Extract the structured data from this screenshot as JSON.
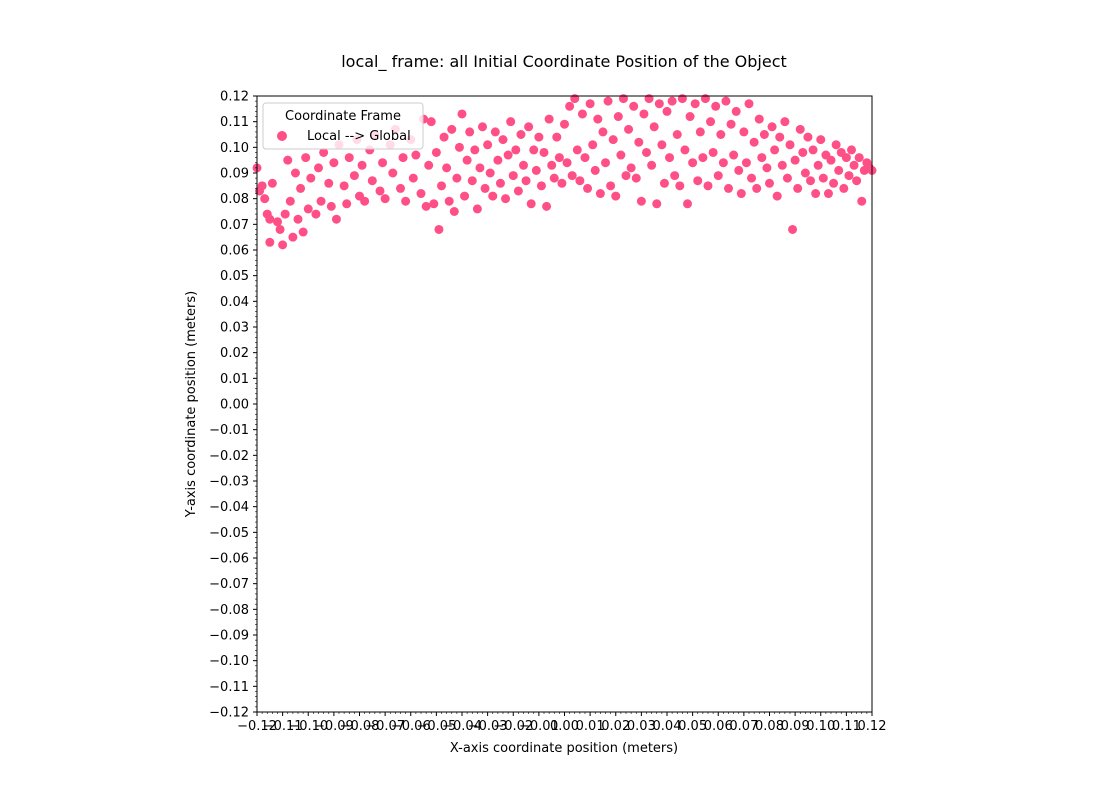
{
  "colors": {
    "marker": "#ff4f87",
    "axis": "#000000",
    "background": "#ffffff",
    "legend_border": "#cccccc"
  },
  "chart_data": {
    "type": "scatter",
    "title": "local_ frame: all Initial Coordinate Position of the Object",
    "xlabel": "X-axis coordinate position (meters)",
    "ylabel": "Y-axis coordinate position (meters)",
    "xlim": [
      -0.12,
      0.12
    ],
    "ylim": [
      -0.12,
      0.12
    ],
    "grid": false,
    "x_ticks": [
      "−0.12",
      "−0.11",
      "−0.10",
      "−0.09",
      "−0.08",
      "−0.07",
      "−0.06",
      "−0.05",
      "−0.04",
      "−0.03",
      "−0.02",
      "−0.01",
      "0.00",
      "0.01",
      "0.02",
      "0.03",
      "0.04",
      "0.05",
      "0.06",
      "0.07",
      "0.08",
      "0.09",
      "0.10",
      "0.11",
      "0.12"
    ],
    "y_ticks": [
      "0.12",
      "0.11",
      "0.10",
      "0.09",
      "0.08",
      "0.07",
      "0.06",
      "0.05",
      "0.04",
      "0.03",
      "0.02",
      "0.01",
      "0.00",
      "−0.01",
      "−0.02",
      "−0.03",
      "−0.04",
      "−0.05",
      "−0.06",
      "−0.07",
      "−0.08",
      "−0.09",
      "−0.10",
      "−0.11",
      "−0.12"
    ],
    "legend": {
      "title": "Coordinate Frame",
      "placement": "top-left",
      "entries": [
        "Local --> Global"
      ]
    },
    "series": [
      {
        "name": "Local --> Global",
        "color": "#ff4f87",
        "points": [
          [
            -0.12,
            0.092
          ],
          [
            -0.119,
            0.083
          ],
          [
            -0.118,
            0.085
          ],
          [
            -0.117,
            0.08
          ],
          [
            -0.116,
            0.074
          ],
          [
            -0.115,
            0.063
          ],
          [
            -0.115,
            0.072
          ],
          [
            -0.114,
            0.086
          ],
          [
            -0.112,
            0.071
          ],
          [
            -0.111,
            0.068
          ],
          [
            -0.11,
            0.062
          ],
          [
            -0.109,
            0.074
          ],
          [
            -0.108,
            0.095
          ],
          [
            -0.107,
            0.079
          ],
          [
            -0.106,
            0.065
          ],
          [
            -0.105,
            0.09
          ],
          [
            -0.104,
            0.072
          ],
          [
            -0.103,
            0.084
          ],
          [
            -0.102,
            0.067
          ],
          [
            -0.101,
            0.096
          ],
          [
            -0.1,
            0.076
          ],
          [
            -0.099,
            0.088
          ],
          [
            -0.097,
            0.074
          ],
          [
            -0.096,
            0.092
          ],
          [
            -0.095,
            0.079
          ],
          [
            -0.094,
            0.098
          ],
          [
            -0.092,
            0.086
          ],
          [
            -0.091,
            0.077
          ],
          [
            -0.09,
            0.094
          ],
          [
            -0.089,
            0.072
          ],
          [
            -0.088,
            0.101
          ],
          [
            -0.086,
            0.085
          ],
          [
            -0.085,
            0.078
          ],
          [
            -0.084,
            0.096
          ],
          [
            -0.082,
            0.089
          ],
          [
            -0.081,
            0.103
          ],
          [
            -0.08,
            0.081
          ],
          [
            -0.079,
            0.093
          ],
          [
            -0.078,
            0.079
          ],
          [
            -0.076,
            0.099
          ],
          [
            -0.075,
            0.087
          ],
          [
            -0.074,
            0.105
          ],
          [
            -0.072,
            0.083
          ],
          [
            -0.071,
            0.094
          ],
          [
            -0.07,
            0.08
          ],
          [
            -0.068,
            0.101
          ],
          [
            -0.067,
            0.09
          ],
          [
            -0.066,
            0.107
          ],
          [
            -0.064,
            0.084
          ],
          [
            -0.063,
            0.096
          ],
          [
            -0.062,
            0.079
          ],
          [
            -0.06,
            0.103
          ],
          [
            -0.059,
            0.088
          ],
          [
            -0.058,
            0.097
          ],
          [
            -0.056,
            0.082
          ],
          [
            -0.055,
            0.111
          ],
          [
            -0.054,
            0.077
          ],
          [
            -0.053,
            0.093
          ],
          [
            -0.052,
            0.11
          ],
          [
            -0.051,
            0.078
          ],
          [
            -0.05,
            0.098
          ],
          [
            -0.049,
            0.068
          ],
          [
            -0.048,
            0.085
          ],
          [
            -0.047,
            0.104
          ],
          [
            -0.046,
            0.092
          ],
          [
            -0.045,
            0.079
          ],
          [
            -0.044,
            0.107
          ],
          [
            -0.043,
            0.075
          ],
          [
            -0.042,
            0.088
          ],
          [
            -0.041,
            0.1
          ],
          [
            -0.04,
            0.113
          ],
          [
            -0.039,
            0.081
          ],
          [
            -0.038,
            0.095
          ],
          [
            -0.037,
            0.106
          ],
          [
            -0.036,
            0.087
          ],
          [
            -0.035,
            0.099
          ],
          [
            -0.034,
            0.076
          ],
          [
            -0.033,
            0.092
          ],
          [
            -0.032,
            0.108
          ],
          [
            -0.031,
            0.084
          ],
          [
            -0.03,
            0.101
          ],
          [
            -0.029,
            0.09
          ],
          [
            -0.028,
            0.081
          ],
          [
            -0.027,
            0.106
          ],
          [
            -0.026,
            0.095
          ],
          [
            -0.025,
            0.086
          ],
          [
            -0.024,
            0.103
          ],
          [
            -0.023,
            0.08
          ],
          [
            -0.022,
            0.097
          ],
          [
            -0.021,
            0.11
          ],
          [
            -0.02,
            0.089
          ],
          [
            -0.019,
            0.099
          ],
          [
            -0.018,
            0.083
          ],
          [
            -0.017,
            0.105
          ],
          [
            -0.016,
            0.093
          ],
          [
            -0.015,
            0.087
          ],
          [
            -0.014,
            0.108
          ],
          [
            -0.013,
            0.078
          ],
          [
            -0.012,
            0.099
          ],
          [
            -0.011,
            0.091
          ],
          [
            -0.01,
            0.104
          ],
          [
            -0.009,
            0.085
          ],
          [
            -0.008,
            0.098
          ],
          [
            -0.007,
            0.077
          ],
          [
            -0.006,
            0.111
          ],
          [
            -0.005,
            0.093
          ],
          [
            -0.004,
            0.088
          ],
          [
            -0.003,
            0.104
          ],
          [
            -0.002,
            0.096
          ],
          [
            -0.001,
            0.086
          ],
          [
            0.0,
            0.109
          ],
          [
            0.001,
            0.094
          ],
          [
            0.002,
            0.116
          ],
          [
            0.003,
            0.089
          ],
          [
            0.004,
            0.119
          ],
          [
            0.005,
            0.099
          ],
          [
            0.006,
            0.087
          ],
          [
            0.007,
            0.113
          ],
          [
            0.008,
            0.096
          ],
          [
            0.009,
            0.084
          ],
          [
            0.01,
            0.117
          ],
          [
            0.011,
            0.101
          ],
          [
            0.012,
            0.091
          ],
          [
            0.013,
            0.111
          ],
          [
            0.014,
            0.082
          ],
          [
            0.015,
            0.106
          ],
          [
            0.016,
            0.094
          ],
          [
            0.017,
            0.118
          ],
          [
            0.018,
            0.085
          ],
          [
            0.019,
            0.103
          ],
          [
            0.02,
            0.081
          ],
          [
            0.021,
            0.112
          ],
          [
            0.022,
            0.097
          ],
          [
            0.023,
            0.119
          ],
          [
            0.024,
            0.089
          ],
          [
            0.025,
            0.107
          ],
          [
            0.026,
            0.092
          ],
          [
            0.027,
            0.116
          ],
          [
            0.028,
            0.088
          ],
          [
            0.029,
            0.102
          ],
          [
            0.03,
            0.079
          ],
          [
            0.031,
            0.113
          ],
          [
            0.032,
            0.098
          ],
          [
            0.033,
            0.119
          ],
          [
            0.034,
            0.093
          ],
          [
            0.035,
            0.108
          ],
          [
            0.036,
            0.078
          ],
          [
            0.037,
            0.117
          ],
          [
            0.038,
            0.101
          ],
          [
            0.039,
            0.086
          ],
          [
            0.04,
            0.114
          ],
          [
            0.041,
            0.096
          ],
          [
            0.042,
            0.118
          ],
          [
            0.043,
            0.089
          ],
          [
            0.044,
            0.105
          ],
          [
            0.045,
            0.085
          ],
          [
            0.046,
            0.119
          ],
          [
            0.047,
            0.099
          ],
          [
            0.048,
            0.078
          ],
          [
            0.049,
            0.112
          ],
          [
            0.05,
            0.094
          ],
          [
            0.051,
            0.117
          ],
          [
            0.052,
            0.087
          ],
          [
            0.053,
            0.106
          ],
          [
            0.054,
            0.096
          ],
          [
            0.055,
            0.119
          ],
          [
            0.056,
            0.085
          ],
          [
            0.057,
            0.11
          ],
          [
            0.058,
            0.098
          ],
          [
            0.059,
            0.116
          ],
          [
            0.06,
            0.089
          ],
          [
            0.061,
            0.105
          ],
          [
            0.062,
            0.094
          ],
          [
            0.063,
            0.118
          ],
          [
            0.064,
            0.084
          ],
          [
            0.065,
            0.109
          ],
          [
            0.066,
            0.097
          ],
          [
            0.067,
            0.114
          ],
          [
            0.068,
            0.091
          ],
          [
            0.069,
            0.082
          ],
          [
            0.07,
            0.106
          ],
          [
            0.071,
            0.094
          ],
          [
            0.072,
            0.117
          ],
          [
            0.073,
            0.088
          ],
          [
            0.074,
            0.102
          ],
          [
            0.075,
            0.084
          ],
          [
            0.076,
            0.111
          ],
          [
            0.077,
            0.096
          ],
          [
            0.078,
            0.105
          ],
          [
            0.079,
            0.092
          ],
          [
            0.08,
            0.086
          ],
          [
            0.081,
            0.108
          ],
          [
            0.082,
            0.099
          ],
          [
            0.083,
            0.081
          ],
          [
            0.084,
            0.104
          ],
          [
            0.085,
            0.093
          ],
          [
            0.086,
            0.11
          ],
          [
            0.087,
            0.088
          ],
          [
            0.088,
            0.101
          ],
          [
            0.089,
            0.068
          ],
          [
            0.09,
            0.095
          ],
          [
            0.091,
            0.084
          ],
          [
            0.092,
            0.107
          ],
          [
            0.093,
            0.098
          ],
          [
            0.094,
            0.09
          ],
          [
            0.095,
            0.104
          ],
          [
            0.096,
            0.087
          ],
          [
            0.097,
            0.099
          ],
          [
            0.098,
            0.082
          ],
          [
            0.099,
            0.093
          ],
          [
            0.1,
            0.103
          ],
          [
            0.101,
            0.088
          ],
          [
            0.102,
            0.097
          ],
          [
            0.103,
            0.082
          ],
          [
            0.104,
            0.095
          ],
          [
            0.105,
            0.086
          ],
          [
            0.106,
            0.101
          ],
          [
            0.107,
            0.091
          ],
          [
            0.108,
            0.098
          ],
          [
            0.109,
            0.084
          ],
          [
            0.11,
            0.096
          ],
          [
            0.111,
            0.089
          ],
          [
            0.112,
            0.099
          ],
          [
            0.113,
            0.093
          ],
          [
            0.114,
            0.087
          ],
          [
            0.115,
            0.096
          ],
          [
            0.116,
            0.079
          ],
          [
            0.117,
            0.091
          ],
          [
            0.118,
            0.094
          ],
          [
            0.119,
            0.092
          ],
          [
            0.12,
            0.091
          ]
        ]
      }
    ]
  }
}
